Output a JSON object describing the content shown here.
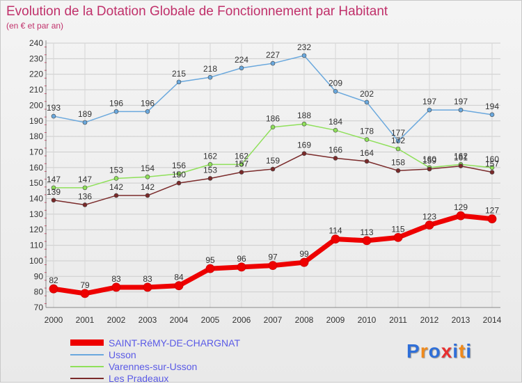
{
  "chart_data": {
    "type": "line",
    "title": "Evolution de la Dotation Globale de Fonctionnement par Habitant",
    "subtitle": "(en € et par an)",
    "x": [
      "2000",
      "2001",
      "2002",
      "2003",
      "2004",
      "2005",
      "2006",
      "2007",
      "2008",
      "2009",
      "2010",
      "2011",
      "2012",
      "2013",
      "2014"
    ],
    "ylim": [
      70,
      240
    ],
    "yticks": [
      70,
      80,
      90,
      100,
      110,
      120,
      130,
      140,
      150,
      160,
      170,
      180,
      190,
      200,
      210,
      220,
      230,
      240
    ],
    "grid": true,
    "legend_position": "bottom-left",
    "series": [
      {
        "name": "SAINT-RéMY-DE-CHARGNAT",
        "color": "#ee0000",
        "emphasis": true,
        "values": [
          82,
          79,
          83,
          83,
          84,
          95,
          96,
          97,
          99,
          114,
          113,
          115,
          123,
          129,
          127
        ]
      },
      {
        "name": "Usson",
        "color": "#6aa8dd",
        "values": [
          193,
          189,
          196,
          196,
          215,
          218,
          224,
          227,
          232,
          209,
          202,
          177,
          197,
          197,
          194
        ]
      },
      {
        "name": "Varennes-sur-Usson",
        "color": "#8fe05a",
        "values": [
          147,
          147,
          153,
          154,
          156,
          162,
          162,
          186,
          188,
          184,
          178,
          172,
          160,
          162,
          160
        ]
      },
      {
        "name": "Les Pradeaux",
        "color": "#7a2a2a",
        "values": [
          139,
          136,
          142,
          142,
          150,
          153,
          157,
          159,
          169,
          166,
          164,
          158,
          159,
          161,
          157
        ]
      }
    ]
  },
  "logo": {
    "letters": [
      "P",
      "r",
      "o",
      "x",
      "i",
      "t",
      "i"
    ],
    "colors": [
      "#2f6fd8",
      "#f08a1c",
      "#2f6fd8",
      "#e83030",
      "#2f6fd8",
      "#f08a1c",
      "#2f6fd8"
    ]
  }
}
